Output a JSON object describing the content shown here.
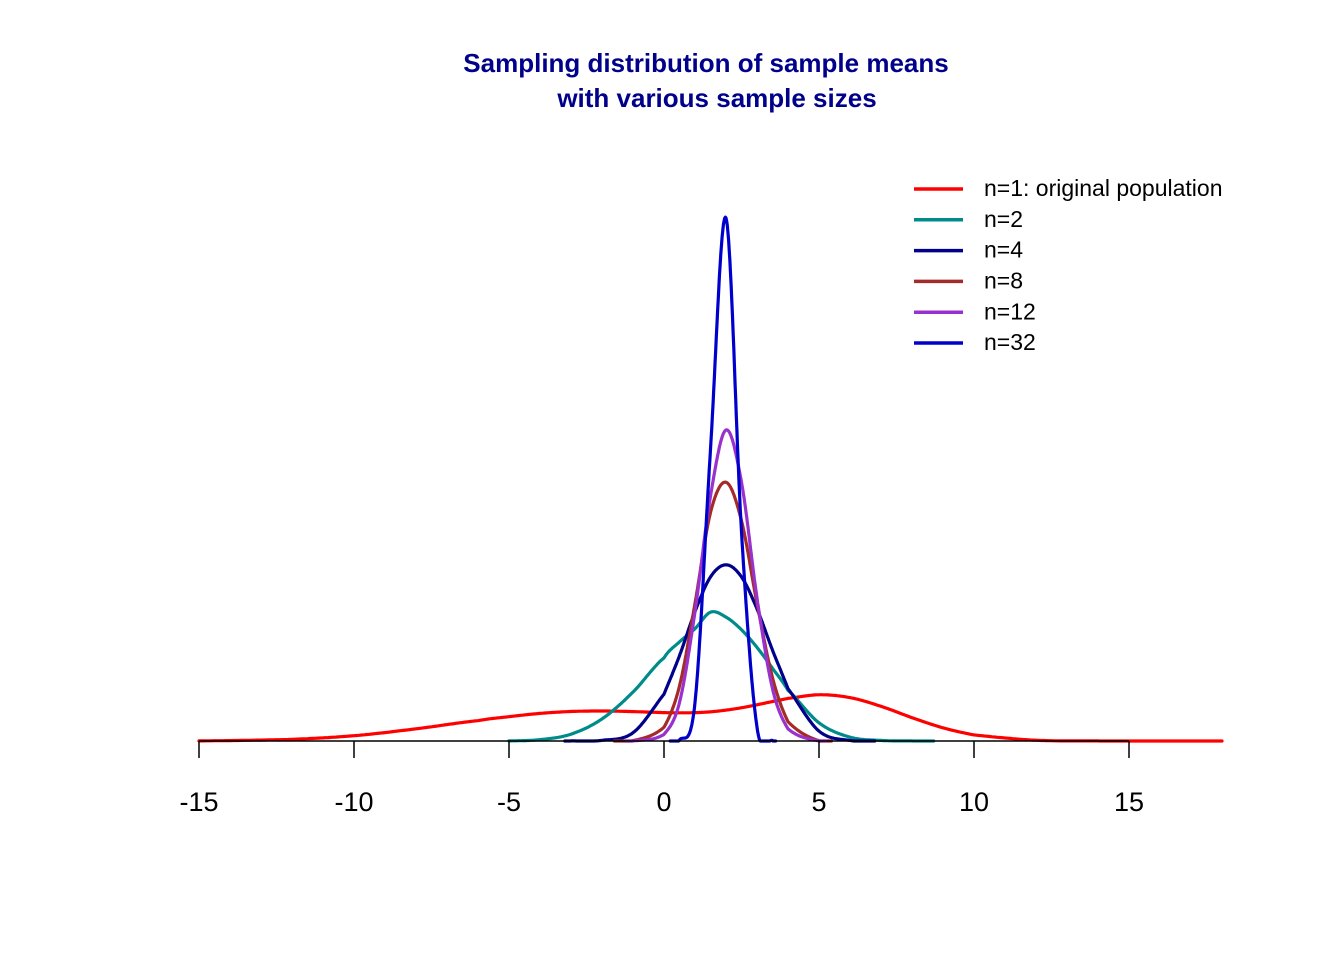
{
  "chart_data": {
    "type": "line",
    "title_lines": [
      "Sampling distribution of sample means",
      "with various sample sizes"
    ],
    "title_color": "#00008B",
    "xlabel": "",
    "ylabel": "",
    "xlim": [
      -15,
      18
    ],
    "x_ticks": [
      -15,
      -10,
      -5,
      0,
      5,
      10,
      15
    ],
    "x_tick_labels": [
      "-15",
      "-10",
      "-5",
      "0",
      "5",
      "10",
      "15"
    ],
    "y_axis_shown": false,
    "grid": false,
    "legend_position": "top-right",
    "x_grid": [
      -15,
      -12,
      -10,
      -8,
      -6,
      -5,
      -4,
      -3,
      -2,
      -1,
      0,
      0.5,
      1,
      1.5,
      2,
      2.5,
      3,
      3.5,
      4,
      5,
      6,
      7,
      8,
      9,
      10,
      12,
      14,
      15,
      18
    ],
    "series": [
      {
        "name": "n=1: original population",
        "color": "#FF0000",
        "x_range": [
          -15,
          18
        ],
        "y": [
          0.0002,
          0.003,
          0.0096,
          0.0221,
          0.0369,
          0.0442,
          0.0501,
          0.0536,
          0.0545,
          0.0534,
          0.0516,
          0.0512,
          0.0515,
          0.053,
          0.0561,
          0.0604,
          0.0658,
          0.0717,
          0.0774,
          0.084,
          0.0788,
          0.063,
          0.0424,
          0.0239,
          0.011,
          0.0014,
          0.0001,
          0.0,
          0.0
        ]
      },
      {
        "name": "n=2",
        "color": "#008B8B",
        "x_range": [
          -5,
          8.7
        ],
        "y": [
          null,
          null,
          null,
          null,
          null,
          0.0002,
          0.0025,
          0.0124,
          0.0401,
          0.0889,
          0.151,
          0.18,
          0.204,
          0.234,
          0.225,
          0.202,
          0.17,
          0.132,
          0.092,
          0.033,
          0.007,
          0.001,
          0.0001,
          null,
          null,
          null,
          null,
          null,
          null
        ]
      },
      {
        "name": "n=4",
        "color": "#00008B",
        "x_range": [
          -3.2,
          6.8
        ],
        "y": [
          null,
          null,
          null,
          null,
          null,
          null,
          null,
          0.0001,
          0.0012,
          0.015,
          0.085,
          0.155,
          0.235,
          0.298,
          0.32,
          0.298,
          0.24,
          0.165,
          0.095,
          0.018,
          0.001,
          null,
          null,
          null,
          null,
          null,
          null,
          null,
          null
        ]
      },
      {
        "name": "n=8",
        "color": "#A52A2A",
        "x_range": [
          -1.6,
          5.4
        ],
        "y": [
          null,
          null,
          null,
          null,
          null,
          null,
          null,
          null,
          null,
          0.0007,
          0.025,
          0.1,
          0.25,
          0.415,
          0.47,
          0.4,
          0.25,
          0.115,
          0.035,
          0.0005,
          null,
          null,
          null,
          null,
          null,
          null,
          null,
          null,
          null
        ]
      },
      {
        "name": "n=12",
        "color": "#9932CC",
        "x_range": [
          -1.2,
          5.2
        ],
        "y": [
          null,
          null,
          null,
          null,
          null,
          null,
          null,
          null,
          null,
          0.0002,
          0.012,
          0.07,
          0.235,
          0.445,
          0.565,
          0.47,
          0.26,
          0.095,
          0.022,
          0.0001,
          null,
          null,
          null,
          null,
          null,
          null,
          null,
          null,
          null
        ]
      },
      {
        "name": "n=32",
        "color": "#0000CD",
        "x_range": [
          0.2,
          3.6
        ],
        "y": [
          null,
          null,
          null,
          null,
          null,
          null,
          null,
          null,
          null,
          null,
          null,
          0.002,
          0.07,
          0.53,
          0.95,
          0.38,
          0.025,
          0.001,
          null,
          null,
          null,
          null,
          null,
          null,
          null,
          null,
          null,
          null,
          null
        ]
      }
    ]
  }
}
